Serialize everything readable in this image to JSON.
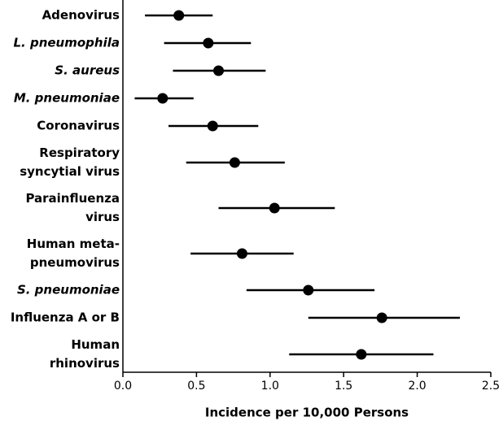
{
  "chart_data": {
    "type": "forest",
    "xlabel": "Incidence per 10,000 Persons",
    "categories": [
      [
        "Adenovirus"
      ],
      [
        "L. pneumophila"
      ],
      [
        "S. aureus"
      ],
      [
        "M. pneumoniae"
      ],
      [
        "Coronavirus"
      ],
      [
        "Respiratory",
        "syncytial virus"
      ],
      [
        "Parainfluenza",
        "virus"
      ],
      [
        "Human meta-",
        "pneumovirus"
      ],
      [
        "S. pneumoniae"
      ],
      [
        "Influenza A or B"
      ],
      [
        "Human",
        "rhinovirus"
      ]
    ],
    "label_style": [
      "normal",
      "italic",
      "italic",
      "italic",
      "normal",
      "normal",
      "normal",
      "normal",
      "italic",
      "normal",
      "normal"
    ],
    "values": [
      0.38,
      0.58,
      0.65,
      0.27,
      0.61,
      0.76,
      1.03,
      0.81,
      1.26,
      1.76,
      1.62
    ],
    "lower": [
      0.15,
      0.28,
      0.34,
      0.08,
      0.31,
      0.43,
      0.65,
      0.46,
      0.84,
      1.26,
      1.13
    ],
    "upper": [
      0.61,
      0.87,
      0.97,
      0.48,
      0.92,
      1.1,
      1.44,
      1.16,
      1.71,
      2.29,
      2.11
    ],
    "color": "#000000",
    "xlim": [
      0,
      2.5
    ],
    "xticks": [
      {
        "value": 0,
        "label": "0.0"
      },
      0.5,
      {
        "value": 1,
        "label": "1.0"
      },
      1.5,
      {
        "value": 2,
        "label": "2.0"
      },
      2.5
    ]
  }
}
